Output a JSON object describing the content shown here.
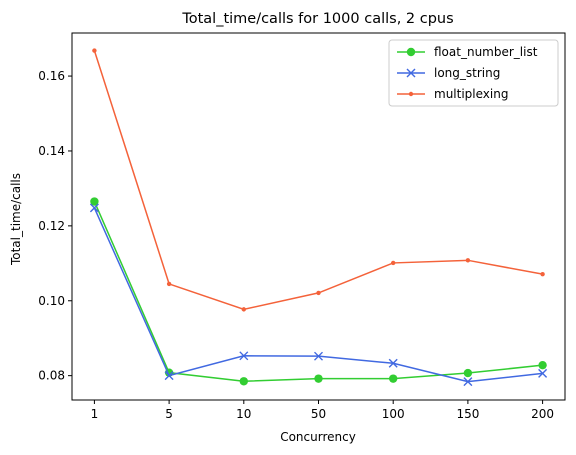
{
  "chart_data": {
    "type": "line",
    "title": "Total_time/calls for 1000 calls, 2 cpus",
    "xlabel": "Concurrency",
    "ylabel": "Total_time/calls",
    "categories": [
      "1",
      "5",
      "10",
      "50",
      "100",
      "150",
      "200"
    ],
    "ylim": [
      0.0735,
      0.1715
    ],
    "yticks": [
      0.08,
      0.1,
      0.12,
      0.14,
      0.16
    ],
    "ytick_labels": [
      "0.08",
      "0.10",
      "0.12",
      "0.14",
      "0.16"
    ],
    "grid": false,
    "legend_position": "top-right",
    "series": [
      {
        "name": "float_number_list",
        "color": "#32cd32",
        "marker": "circle",
        "values": [
          0.1265,
          0.0808,
          0.0785,
          0.0792,
          0.0792,
          0.0807,
          0.0828
        ]
      },
      {
        "name": "long_string",
        "color": "#4169e1",
        "marker": "x",
        "values": [
          0.1248,
          0.08,
          0.0853,
          0.0852,
          0.0833,
          0.0784,
          0.0806
        ]
      },
      {
        "name": "multiplexing",
        "color": "#f4623a",
        "marker": "point",
        "values": [
          0.1668,
          0.1045,
          0.0977,
          0.1021,
          0.1101,
          0.1108,
          0.1071
        ]
      }
    ]
  }
}
